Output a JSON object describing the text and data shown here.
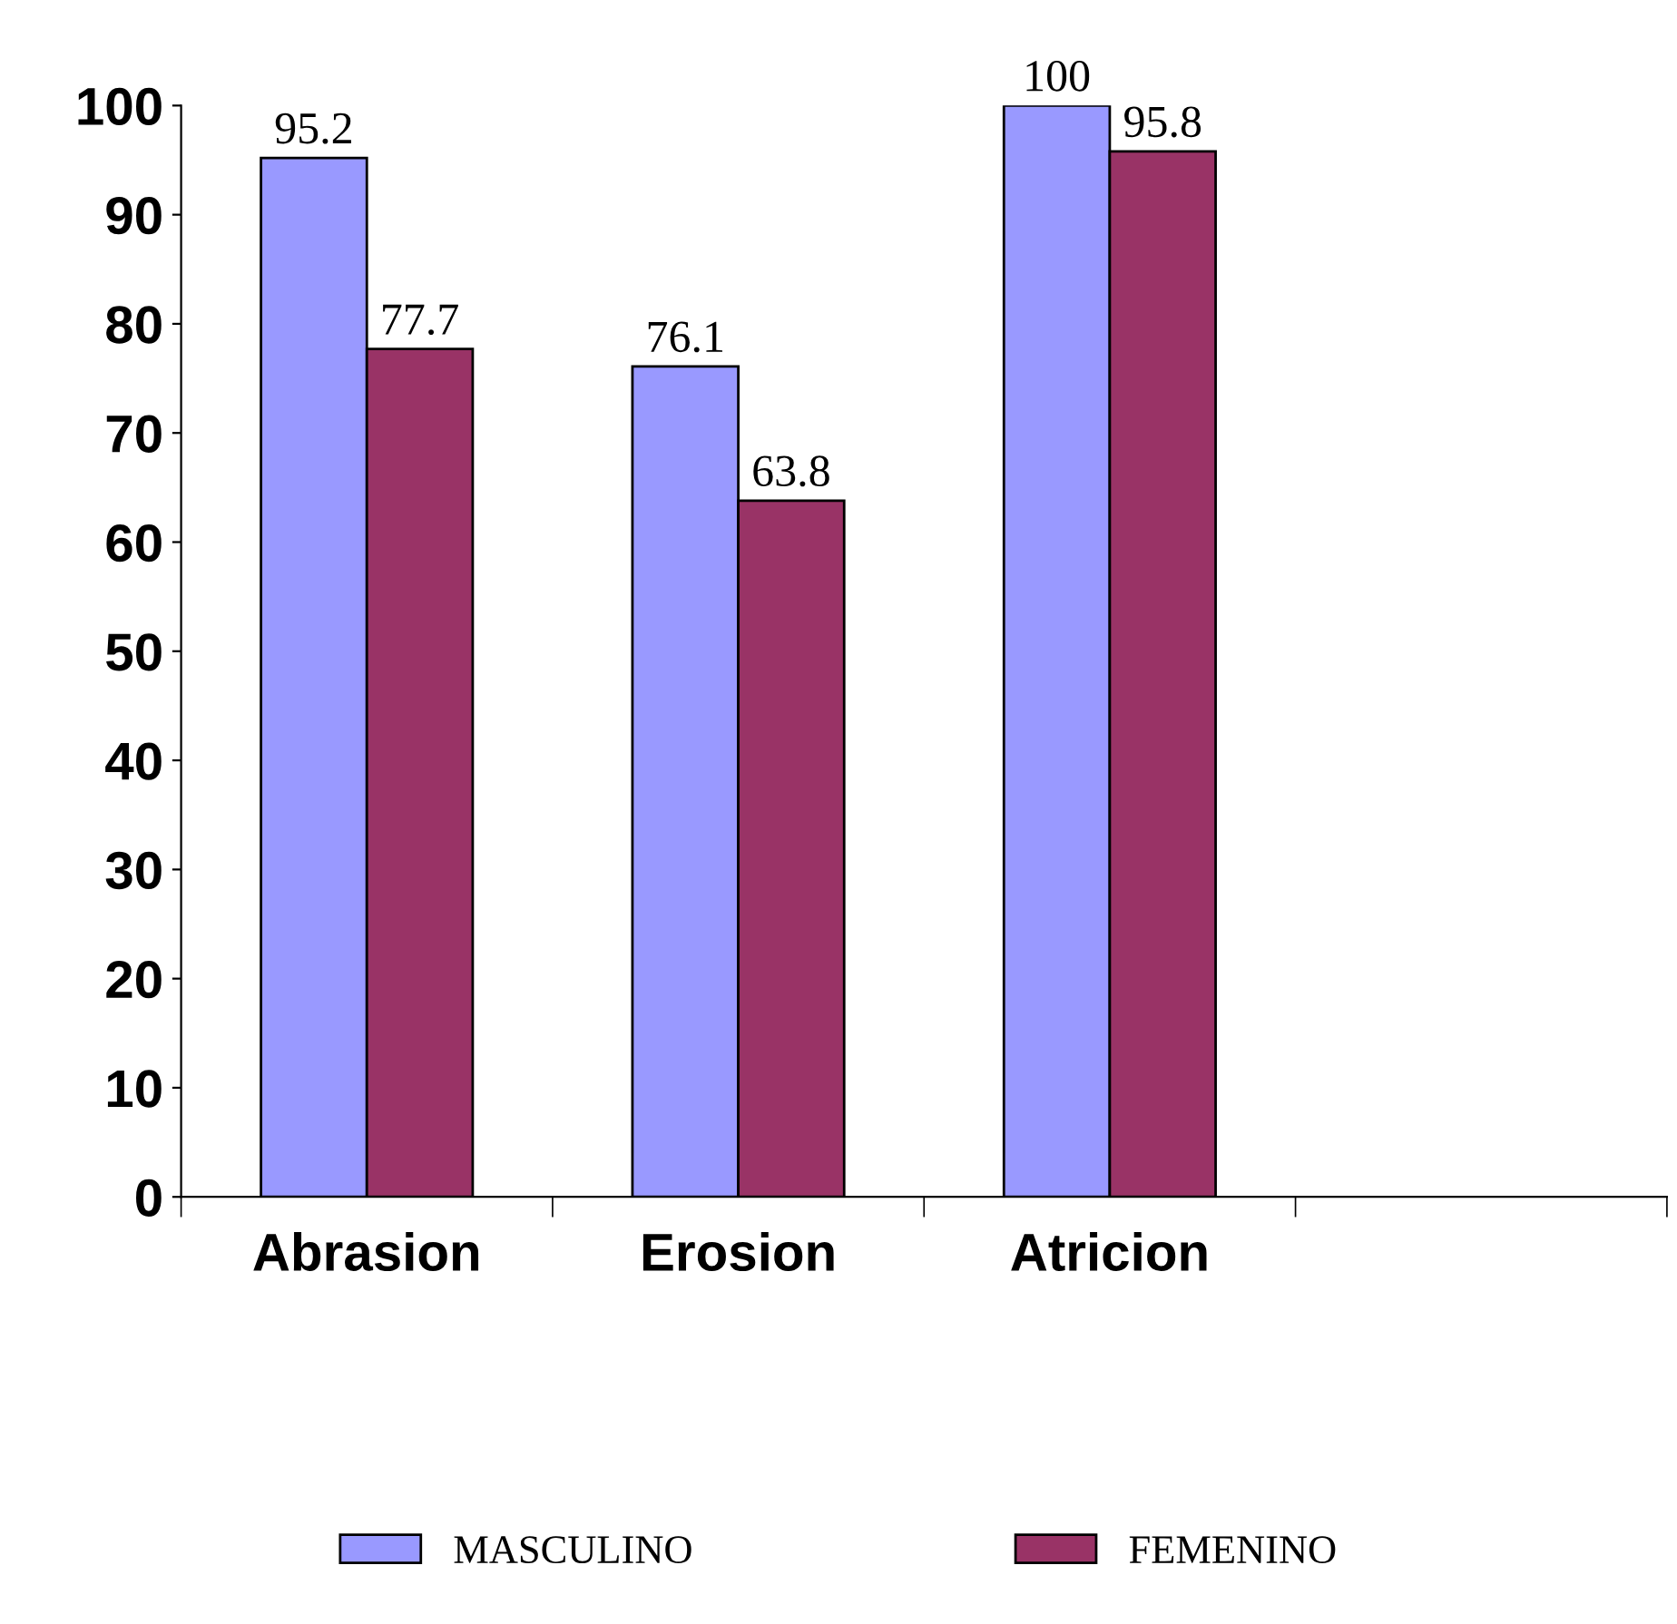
{
  "chart_data": {
    "type": "bar",
    "categories": [
      "Abrasion",
      "Erosion",
      "Atricion",
      null
    ],
    "series": [
      {
        "name": "MASCULINO",
        "color": "#9999ff",
        "values": [
          95.2,
          76.1,
          100,
          null
        ]
      },
      {
        "name": "FEMENINO",
        "color": "#993366",
        "values": [
          77.7,
          63.8,
          95.8,
          null
        ]
      }
    ],
    "ylim": [
      0,
      100
    ],
    "yticks": [
      0,
      10,
      20,
      30,
      40,
      50,
      60,
      70,
      80,
      90,
      100
    ],
    "data_labels": true,
    "legend": "bottom",
    "grid": false
  }
}
